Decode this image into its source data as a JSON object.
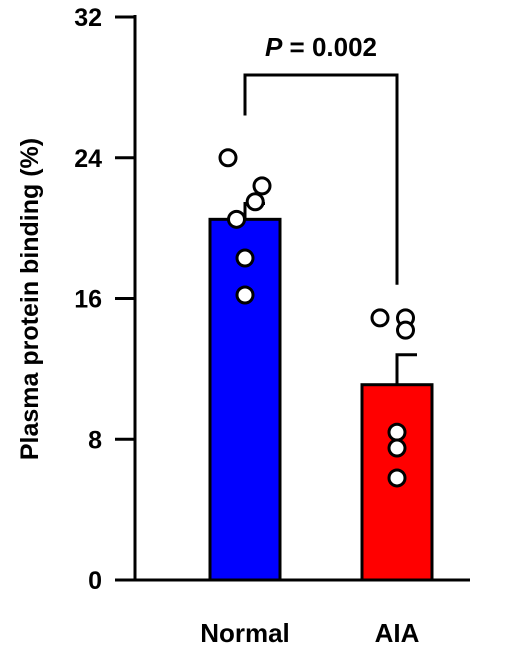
{
  "chart_data": {
    "type": "bar",
    "categories": [
      "Normal",
      "AIA"
    ],
    "values": [
      20.5,
      11.1
    ],
    "error_upper": [
      21.4,
      12.8
    ],
    "points": [
      [
        24.0,
        22.4,
        20.5,
        21.5,
        18.3,
        16.2
      ],
      [
        14.9,
        14.9,
        14.2,
        8.4,
        7.5,
        5.8
      ]
    ],
    "bar_colors": [
      "#0000ff",
      "#ff0000"
    ],
    "ylabel": "Plasma protein binding (%)",
    "xlabel": "",
    "ylim": [
      0,
      32
    ],
    "yticks": [
      0,
      8,
      16,
      24,
      32
    ],
    "annotation": {
      "p_italic": "P",
      "p_rest": " = 0.002"
    },
    "grid": false,
    "legend": "none"
  }
}
